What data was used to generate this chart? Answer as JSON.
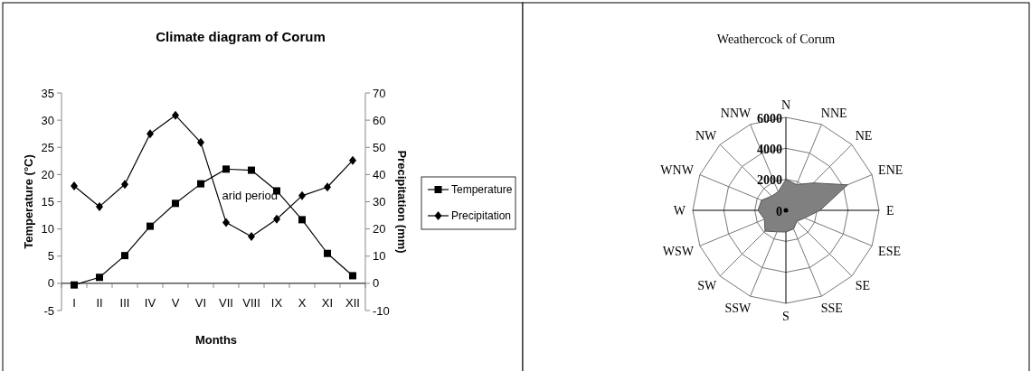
{
  "chart_data": [
    {
      "type": "line",
      "title": "Climate diagram of Corum",
      "xlabel": "Months",
      "ylabel": "Temperature (°C)",
      "y2label": "Precipitation (mm)",
      "categories": [
        "I",
        "II",
        "III",
        "IV",
        "V",
        "VI",
        "VII",
        "VIII",
        "IX",
        "X",
        "XI",
        "XII"
      ],
      "series": [
        {
          "name": "Temperature",
          "color": "#000000",
          "marker": "square",
          "values": [
            -0.3,
            1.1,
            5.1,
            10.5,
            14.7,
            18.3,
            21.0,
            20.8,
            17.0,
            11.7,
            5.5,
            1.4
          ]
        },
        {
          "name": "Precipitation",
          "color": "#000000",
          "marker": "diamond",
          "axis": "y2",
          "values": [
            35.8,
            28.2,
            36.4,
            55.0,
            61.8,
            51.8,
            22.4,
            17.2,
            23.6,
            32.2,
            35.4,
            45.2
          ]
        }
      ],
      "ylim": [
        -5,
        35
      ],
      "yticks": [
        -5,
        0,
        5,
        10,
        15,
        20,
        25,
        30,
        35
      ],
      "y2lim": [
        -10,
        70
      ],
      "y2ticks": [
        -10,
        0,
        10,
        20,
        30,
        40,
        50,
        60,
        70
      ],
      "annotations": [
        "arid period"
      ],
      "legend": "right",
      "grid": false
    },
    {
      "type": "radar",
      "title": "Weathercock of Corum",
      "categories": [
        "N",
        "NNE",
        "NE",
        "ENE",
        "E",
        "ESE",
        "SE",
        "SSE",
        "S",
        "SSW",
        "SW",
        "WSW",
        "W",
        "WNW",
        "NW",
        "NNW"
      ],
      "series": [
        {
          "color": "#808080",
          "values": [
            2000,
            1800,
            2500,
            4300,
            2200,
            1300,
            1000,
            1300,
            1400,
            1500,
            1900,
            1500,
            1800,
            1700,
            1300,
            1300
          ]
        }
      ],
      "ylim": [
        0,
        6000
      ],
      "yticks": [
        0,
        2000,
        4000,
        6000
      ],
      "grid": true
    }
  ]
}
